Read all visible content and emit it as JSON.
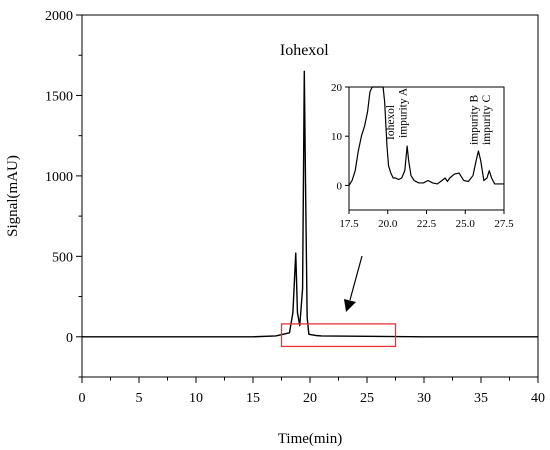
{
  "chart_data": {
    "type": "line",
    "xlabel": "Time(min)",
    "ylabel": "Signal(mAU)",
    "xlim": [
      0,
      40
    ],
    "ylim": [
      -250,
      2000
    ],
    "xticks": [
      "0",
      "5",
      "10",
      "15",
      "20",
      "25",
      "30",
      "35",
      "40"
    ],
    "yticks": [
      "0",
      "500",
      "1000",
      "1500",
      "2000"
    ],
    "grid": false,
    "annotations": [
      {
        "text": "Iohexol",
        "x": 19.5,
        "y": 1750
      }
    ],
    "highlight_box": {
      "x": [
        17.5,
        27.5
      ],
      "y": [
        -60,
        80
      ],
      "color": "#e8323c"
    },
    "series": [
      {
        "x": [
          0,
          5,
          7.5,
          10,
          12.5,
          15,
          17,
          18.2,
          18.5,
          18.75,
          18.9,
          19.1,
          19.35,
          19.5,
          19.6,
          19.75,
          19.9,
          20.5,
          21,
          25,
          30,
          35,
          40
        ],
        "y": [
          0,
          0,
          0,
          0,
          0,
          0,
          5,
          25,
          150,
          520,
          150,
          70,
          300,
          1650,
          1000,
          120,
          15,
          8,
          5,
          3,
          0,
          0,
          0
        ]
      }
    ],
    "inset": {
      "xlim": [
        17.5,
        27.5
      ],
      "ylim": [
        -5,
        20
      ],
      "xticks": [
        "17.5",
        "20.0",
        "22.5",
        "25.0",
        "27.5"
      ],
      "yticks": [
        "0",
        "10",
        "20"
      ],
      "labels": [
        {
          "text": "Iohexol",
          "x": 20.4
        },
        {
          "text": "impurity A",
          "x": 21.2
        },
        {
          "text": "impurity B",
          "x": 25.8
        },
        {
          "text": "impurity C",
          "x": 26.6
        }
      ],
      "series": [
        {
          "x": [
            17.5,
            17.7,
            17.9,
            18.1,
            18.3,
            18.5,
            18.7,
            18.85,
            19.0,
            19.7,
            19.8,
            19.95,
            20.05,
            20.2,
            20.35,
            20.5,
            20.7,
            20.9,
            21.1,
            21.25,
            21.35,
            21.5,
            21.7,
            22.0,
            22.3,
            22.6,
            22.9,
            23.2,
            23.5,
            23.7,
            23.85,
            24.0,
            24.3,
            24.6,
            24.9,
            25.2,
            25.5,
            25.7,
            25.85,
            26.0,
            26.2,
            26.4,
            26.55,
            26.7,
            26.9,
            27.2,
            27.5
          ],
          "y": [
            0,
            1,
            3,
            7,
            10,
            12,
            15,
            19,
            22,
            22,
            17,
            8,
            4,
            2.5,
            1.5,
            1.5,
            1.2,
            1.5,
            3,
            8,
            5,
            2,
            1,
            0.5,
            0.5,
            1,
            0.5,
            0.3,
            1,
            1.5,
            0.8,
            1.5,
            2.3,
            2.5,
            1,
            0.8,
            2,
            5,
            7,
            5,
            1,
            1.5,
            3,
            1.5,
            0.3,
            0.3,
            0.3
          ]
        }
      ]
    }
  }
}
